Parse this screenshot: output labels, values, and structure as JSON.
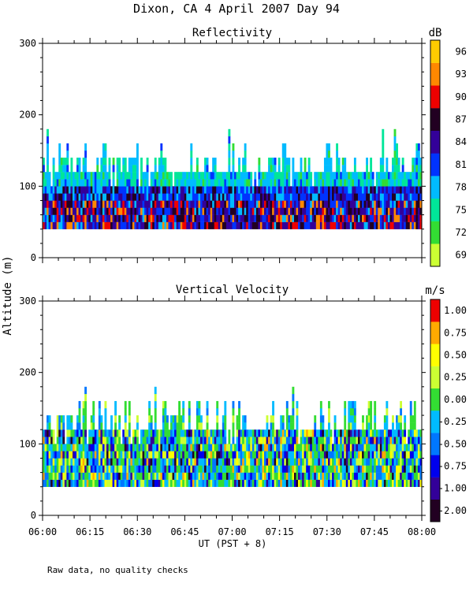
{
  "figure": {
    "title": "Dixon, CA   4 April 2007   Day  94",
    "y_label": "Altitude (m)",
    "x_label": "UT  (PST + 8)",
    "footnote": "Raw data, no quality checks"
  },
  "chart_data": [
    {
      "type": "heatmap",
      "title": "Reflectivity",
      "colorbar_unit": "dB",
      "ylim": [
        0,
        300
      ],
      "y_ticks": [
        "0",
        "100",
        "200",
        "300"
      ],
      "xlim": [
        "06:00",
        "08:00"
      ],
      "x_ticks": [
        "06:00",
        "06:15",
        "06:30",
        "06:45",
        "07:00",
        "07:15",
        "07:30",
        "07:45",
        "08:00"
      ],
      "data_altitude_range_m": [
        40,
        180
      ],
      "colorbar_levels": [
        "69",
        "72",
        "75",
        "78",
        "81",
        "84",
        "87",
        "90",
        "93",
        "96"
      ],
      "colorbar_colors": [
        "#ccff33",
        "#33dd33",
        "#00e699",
        "#00bbff",
        "#0033ff",
        "#330099",
        "#220022",
        "#ee0000",
        "#ff8800",
        "#ffcc00"
      ]
    },
    {
      "type": "heatmap",
      "title": "Vertical Velocity",
      "colorbar_unit": "m/s",
      "ylim": [
        0,
        300
      ],
      "y_ticks": [
        "0",
        "100",
        "200",
        "300"
      ],
      "xlim": [
        "06:00",
        "08:00"
      ],
      "x_ticks": [
        "06:00",
        "06:15",
        "06:30",
        "06:45",
        "07:00",
        "07:15",
        "07:30",
        "07:45",
        "08:00"
      ],
      "data_altitude_range_m": [
        40,
        180
      ],
      "colorbar_levels": [
        "-2.00",
        "-1.00",
        "-0.75",
        "-0.50",
        "-0.25",
        "0.00",
        "0.25",
        "0.50",
        "0.75",
        "1.00"
      ],
      "colorbar_colors": [
        "#220022",
        "#330099",
        "#0000ee",
        "#0077ff",
        "#00bbff",
        "#33dd33",
        "#ccff33",
        "#ffff00",
        "#ffaa00",
        "#ee0000"
      ]
    }
  ]
}
